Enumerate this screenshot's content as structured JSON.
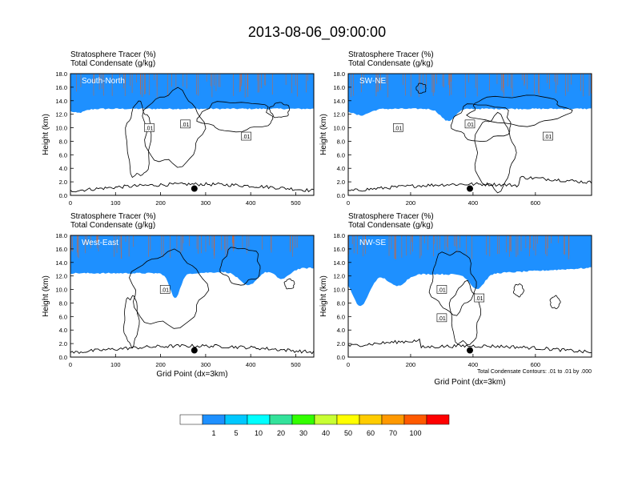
{
  "title": "2013-08-06_09:00:00",
  "panel_header": {
    "line1": "Stratosphere Tracer   (%)",
    "line2": "Total Condensate   (g/kg)"
  },
  "axis": {
    "ylabel": "Height (km)",
    "xlabel": "Grid Point (dx=3km)",
    "yticks": [
      "0.0",
      "2.0",
      "4.0",
      "6.0",
      "8.0",
      "10.0",
      "12.0",
      "14.0",
      "16.0",
      "18.0"
    ]
  },
  "contour_note": "Total Condensate Contours: .01 to .01 by .000",
  "contour_label": ".01",
  "colorbar": {
    "labels": [
      "1",
      "5",
      "10",
      "20",
      "30",
      "40",
      "50",
      "60",
      "70",
      "100"
    ],
    "colors": [
      "#ffffff",
      "#1e90ff",
      "#00c8ff",
      "#00ffff",
      "#33e29b",
      "#33ff00",
      "#c8ff33",
      "#ffff00",
      "#ffcc00",
      "#ff9900",
      "#ff5a00",
      "#ff0000"
    ]
  },
  "chart_data": [
    {
      "type": "heatmap",
      "name": "South-North",
      "xlim": [
        0,
        540
      ],
      "ylim": [
        0,
        18
      ],
      "xticks": [
        "0",
        "100",
        "200",
        "300",
        "400",
        "500"
      ],
      "contour_labels_x": [
        175,
        255,
        390
      ],
      "marker_x": 275
    },
    {
      "type": "heatmap",
      "name": "SW-NE",
      "xlim": [
        0,
        780
      ],
      "ylim": [
        0,
        18
      ],
      "xticks": [
        "0",
        "200",
        "400",
        "600"
      ],
      "contour_labels_x": [
        160,
        390,
        640
      ],
      "marker_x": 390
    },
    {
      "type": "heatmap",
      "name": "West-East",
      "xlim": [
        0,
        540
      ],
      "ylim": [
        0,
        18
      ],
      "xticks": [
        "0",
        "100",
        "200",
        "300",
        "400",
        "500"
      ],
      "contour_labels_x": [
        210
      ],
      "marker_x": 275
    },
    {
      "type": "heatmap",
      "name": "NW-SE",
      "xlim": [
        0,
        780
      ],
      "ylim": [
        0,
        18
      ],
      "xticks": [
        "0",
        "200",
        "400",
        "600"
      ],
      "contour_labels_x": [
        300,
        300,
        420
      ],
      "marker_x": 390
    }
  ]
}
